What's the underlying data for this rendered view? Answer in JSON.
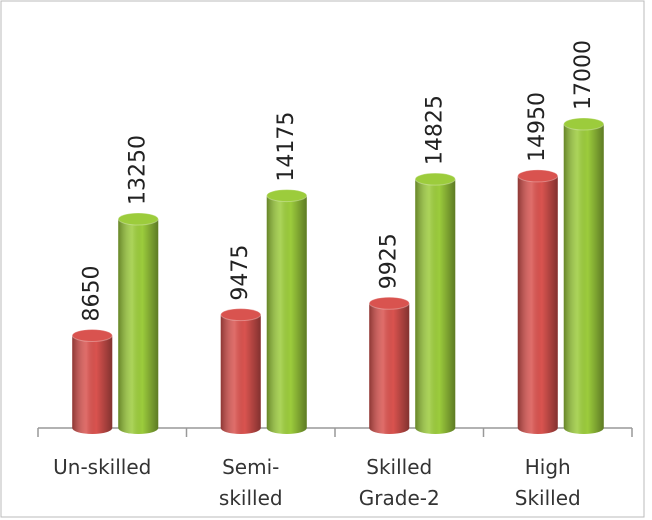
{
  "chart_data": {
    "type": "bar",
    "categories": [
      "Un-skilled",
      "Semi-\nskilled",
      "Skilled\nGrade-2",
      "High\nSkilled"
    ],
    "series": [
      {
        "color": "#d9534f",
        "values": [
          8650,
          9475,
          9925,
          14950
        ]
      },
      {
        "color": "#9ccc3c",
        "values": [
          13250,
          14175,
          14825,
          17000
        ]
      }
    ],
    "ylim": [
      5000,
      21500
    ]
  }
}
